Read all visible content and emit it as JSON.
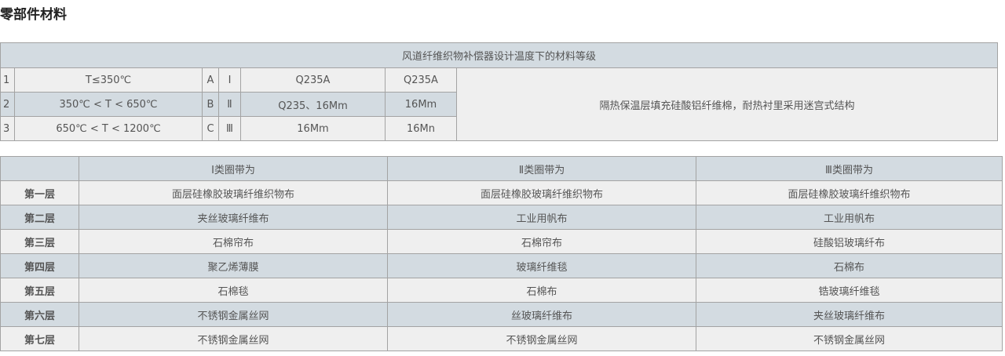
{
  "title": "零部件材料",
  "table1": {
    "caption": "风道纤维织物补偿器设计温度下的材料等级",
    "rows": [
      [
        "1",
        "T≤350℃",
        "A",
        "Ⅰ",
        "Q235A",
        "Q235A"
      ],
      [
        "2",
        "350℃ < T < 650℃",
        "B",
        "Ⅱ",
        "Q235、16Mm",
        "16Mm"
      ],
      [
        "3",
        "650℃ < T < 1200℃",
        "C",
        "Ⅲ",
        "16Mm",
        "16Mn"
      ]
    ],
    "note": "隔热保温层填充硅酸铝纤维棉，耐热衬里采用迷宫式结构"
  },
  "table2": {
    "headers": [
      "",
      "Ⅰ类圈带为",
      "Ⅱ类圈带为",
      "Ⅲ类圈带为"
    ],
    "rows": [
      [
        "第一层",
        "面层硅橡胶玻璃纤维织物布",
        "面层硅橡胶玻璃纤维织物布",
        "面层硅橡胶玻璃纤维织物布"
      ],
      [
        "第二层",
        "夹丝玻璃纤维布",
        "工业用帆布",
        "工业用帆布"
      ],
      [
        "第三层",
        "石棉帘布",
        "石棉帘布",
        "硅酸铝玻璃纤布"
      ],
      [
        "第四层",
        "聚乙烯薄膜",
        "玻璃纤维毯",
        "石棉布"
      ],
      [
        "第五层",
        "石棉毯",
        "石棉布",
        "锆玻璃纤维毯"
      ],
      [
        "第六层",
        "不锈钢金属丝网",
        "丝玻璃纤维布",
        "夹丝玻璃纤维布"
      ],
      [
        "第七层",
        "不锈钢金属丝网",
        "不锈钢金属丝网",
        "不锈钢金属丝网"
      ]
    ]
  }
}
